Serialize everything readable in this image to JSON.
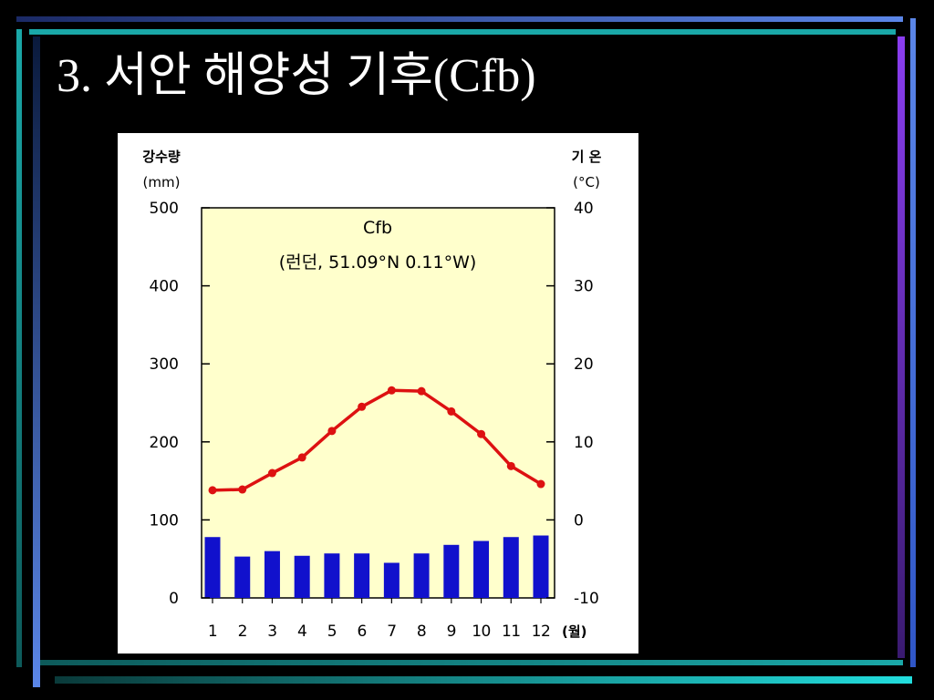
{
  "slide": {
    "title": "3. 서안 해양성 기후(Cfb)"
  },
  "colors": {
    "background": "#000000",
    "frame_blue": "#5b86e8",
    "frame_teal": "#1aa8a8",
    "frame_violet": "#8a3df0",
    "plot_area": "#ffffcc",
    "temperature_line": "#dd1111",
    "precipitation_bars": "#1111cc"
  },
  "chart_data": {
    "type": "bar+line",
    "title": "Cfb",
    "subtitle": "(런던, 51.09°N 0.11°W)",
    "categories": [
      "1",
      "2",
      "3",
      "4",
      "5",
      "6",
      "7",
      "8",
      "9",
      "10",
      "11",
      "12"
    ],
    "x_unit_label": "(월)",
    "left_axis": {
      "label_line1": "강수량",
      "label_line2": "(mm)",
      "ylim": [
        0,
        500
      ],
      "ticks": [
        "0",
        "100",
        "200",
        "300",
        "400",
        "500"
      ]
    },
    "right_axis": {
      "label_line1": "기 온",
      "label_line2": "(°C)",
      "ylim": [
        -10,
        40
      ],
      "ticks": [
        "-10",
        "0",
        "10",
        "20",
        "30",
        "40"
      ]
    },
    "series": [
      {
        "type": "bar",
        "axis": "left",
        "values": [
          78,
          53,
          60,
          54,
          57,
          57,
          45,
          57,
          68,
          73,
          78,
          80
        ]
      },
      {
        "type": "line",
        "axis": "right",
        "values": [
          3.8,
          3.9,
          6.0,
          8.0,
          11.4,
          14.5,
          16.6,
          16.5,
          13.9,
          11.0,
          6.9,
          4.6
        ]
      }
    ],
    "grid": false
  }
}
